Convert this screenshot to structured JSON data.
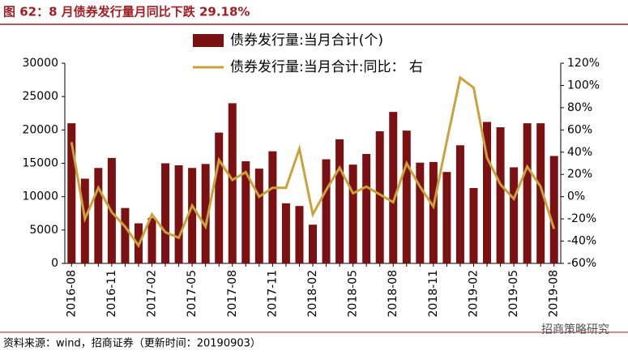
{
  "title": "图 62：8 月债券发行量月同比下跌 29.18%",
  "source": "资料来源：wind，招商证券（更新时间：20190903）",
  "watermark": "招商策略研究",
  "chart_data": {
    "type": "bar_line",
    "categories": [
      "2016-08",
      null,
      null,
      "2016-11",
      null,
      null,
      "2017-02",
      null,
      null,
      "2017-05",
      null,
      null,
      "2017-08",
      null,
      null,
      "2017-11",
      null,
      null,
      "2018-02",
      null,
      null,
      "2018-05",
      null,
      null,
      "2018-08",
      null,
      null,
      "2018-11",
      null,
      null,
      "2019-02",
      null,
      null,
      "2019-05",
      null,
      null,
      "2019-08"
    ],
    "series": [
      {
        "name": "债券发行量:当月合计(个)",
        "color": "#7b1113",
        "type": "bar",
        "values": [
          21000,
          12700,
          14300,
          15800,
          8300,
          6000,
          6800,
          15000,
          14700,
          14300,
          14900,
          19600,
          24000,
          15300,
          14200,
          16800,
          9000,
          8600,
          5800,
          15600,
          18600,
          14800,
          16400,
          19800,
          22700,
          19900,
          15100,
          15200,
          13700,
          17700,
          11300,
          21200,
          20400,
          14400,
          21000,
          21000,
          16100
        ]
      },
      {
        "name": "债券发行量:当月合计:同比： 右",
        "color": "#c9a23c",
        "type": "line",
        "axis": "y2",
        "values": [
          49,
          -20,
          8,
          -14,
          -27,
          -44,
          -16,
          -32,
          -37,
          -8,
          -27,
          33,
          15,
          22,
          0,
          8,
          8,
          43,
          -16,
          6,
          26,
          3,
          9,
          2,
          -5,
          30,
          9,
          -9,
          50,
          107,
          98,
          35,
          11,
          -2,
          27,
          9,
          -29
        ]
      }
    ],
    "ylim": [
      0,
      30000
    ],
    "yticks": [
      0,
      5000,
      10000,
      15000,
      20000,
      25000,
      30000
    ],
    "y2lim": [
      -60,
      120
    ],
    "y2ticks": [
      {
        "value": -60,
        "label": "-60%"
      },
      {
        "value": -40,
        "label": "-40%"
      },
      {
        "value": -20,
        "label": "-20%"
      },
      {
        "value": 0,
        "label": "0%"
      },
      {
        "value": 20,
        "label": "20%"
      },
      {
        "value": 40,
        "label": "40%"
      },
      {
        "value": 60,
        "label": "60%"
      },
      {
        "value": 80,
        "label": "80%"
      },
      {
        "value": 100,
        "label": "100%"
      },
      {
        "value": 120,
        "label": "120%"
      }
    ]
  }
}
